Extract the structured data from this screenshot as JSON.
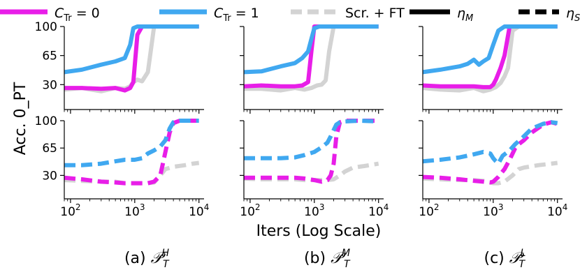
{
  "legend": {
    "placement": "top",
    "entries": [
      {
        "label": "C_Tr = 0",
        "color": "#e81ee8",
        "style": "solid"
      },
      {
        "label": "C_Tr = 1",
        "color": "#40a8f0",
        "style": "solid"
      },
      {
        "label": "Scr. + FT",
        "color": "#d3d3d3",
        "style": "dashed"
      },
      {
        "label": "η_M",
        "color": "#000000",
        "style": "solid"
      },
      {
        "label": "η_S",
        "color": "#000000",
        "style": "dashed"
      }
    ]
  },
  "ylabel": "Acc. 0_PT",
  "xlabel": "Iters (Log Scale)",
  "x_scale": "log",
  "xlim": [
    80,
    12000
  ],
  "ylim": [
    0,
    100
  ],
  "yticks": [
    30,
    65,
    100
  ],
  "xticks": [
    {
      "value": 100,
      "base": "10",
      "exp": "2"
    },
    {
      "value": 1000,
      "base": "10",
      "exp": "3"
    },
    {
      "value": 10000,
      "base": "10",
      "exp": "4"
    }
  ],
  "captions": [
    {
      "prefix": "(a)",
      "sup": "H",
      "sub": "T"
    },
    {
      "prefix": "(b)",
      "sup": "M",
      "sub": "T"
    },
    {
      "prefix": "(c)",
      "sup": "L",
      "sub": "T"
    }
  ],
  "colors": {
    "ctr0": "#e81ee8",
    "ctr1": "#40a8f0",
    "scr": "#d3d3d3"
  },
  "chart_data": [
    {
      "type": "line",
      "panel": "(a) top",
      "metric": "η_M",
      "x_scale": "log",
      "ylim": [
        0,
        100
      ],
      "series": [
        {
          "name": "C_Tr = 0",
          "x": [
            80,
            150,
            300,
            500,
            700,
            850,
            950,
            1100,
            1300,
            1600,
            2500,
            5000,
            10000
          ],
          "y": [
            26,
            26,
            25,
            26,
            23,
            26,
            33,
            90,
            100,
            100,
            100,
            100,
            100
          ]
        },
        {
          "name": "C_Tr = 1",
          "x": [
            80,
            150,
            300,
            500,
            700,
            850,
            950,
            1100,
            1300,
            1600,
            2500,
            5000,
            10000
          ],
          "y": [
            45,
            48,
            54,
            58,
            62,
            78,
            98,
            100,
            100,
            100,
            100,
            100,
            100
          ]
        },
        {
          "name": "Scr. + FT",
          "x": [
            80,
            150,
            300,
            500,
            700,
            850,
            950,
            1100,
            1300,
            1600,
            2000,
            2500,
            5000,
            10000
          ],
          "y": [
            24,
            26,
            22,
            26,
            25,
            28,
            33,
            36,
            34,
            45,
            100,
            100,
            100,
            100
          ]
        }
      ]
    },
    {
      "type": "line",
      "panel": "(b) top",
      "metric": "η_M",
      "x_scale": "log",
      "ylim": [
        0,
        100
      ],
      "series": [
        {
          "name": "C_Tr = 0",
          "x": [
            80,
            150,
            300,
            500,
            650,
            800,
            900,
            1000,
            1200,
            2000,
            5000,
            10000
          ],
          "y": [
            28,
            29,
            28,
            28,
            29,
            33,
            70,
            100,
            100,
            100,
            100,
            100
          ]
        },
        {
          "name": "C_Tr = 1",
          "x": [
            80,
            150,
            300,
            500,
            650,
            800,
            900,
            1000,
            1200,
            2000,
            5000,
            10000
          ],
          "y": [
            45,
            46,
            52,
            56,
            62,
            70,
            85,
            98,
            100,
            100,
            100,
            100
          ]
        },
        {
          "name": "Scr. + FT",
          "x": [
            80,
            150,
            300,
            500,
            700,
            900,
            1100,
            1300,
            1500,
            1700,
            2000,
            5000,
            10000
          ],
          "y": [
            25,
            25,
            23,
            26,
            24,
            26,
            29,
            30,
            35,
            70,
            100,
            100,
            100
          ]
        }
      ]
    },
    {
      "type": "line",
      "panel": "(c) top",
      "metric": "η_M",
      "x_scale": "log",
      "ylim": [
        0,
        100
      ],
      "series": [
        {
          "name": "C_Tr = 0",
          "x": [
            80,
            150,
            300,
            500,
            700,
            900,
            1000,
            1100,
            1300,
            1500,
            1800,
            2500,
            5000,
            10000
          ],
          "y": [
            29,
            28,
            28,
            28,
            27,
            27,
            30,
            36,
            50,
            65,
            100,
            100,
            100,
            100
          ]
        },
        {
          "name": "C_Tr = 1",
          "x": [
            80,
            150,
            300,
            400,
            500,
            600,
            700,
            850,
            1000,
            1200,
            1500,
            1800,
            2500,
            5000,
            10000
          ],
          "y": [
            45,
            48,
            52,
            55,
            60,
            54,
            58,
            62,
            78,
            95,
            100,
            100,
            100,
            100,
            100
          ]
        },
        {
          "name": "Scr. + FT",
          "x": [
            80,
            150,
            300,
            500,
            700,
            900,
            1100,
            1300,
            1500,
            1700,
            2000,
            2500,
            5000,
            10000
          ],
          "y": [
            26,
            24,
            23,
            26,
            22,
            24,
            27,
            32,
            40,
            50,
            95,
            100,
            100,
            100
          ]
        }
      ]
    },
    {
      "type": "line",
      "panel": "(a) bottom",
      "metric": "η_S",
      "x_scale": "log",
      "ylim": [
        0,
        100
      ],
      "series": [
        {
          "name": "C_Tr = 0",
          "x": [
            80,
            150,
            300,
            500,
            700,
            1000,
            1300,
            1600,
            2000,
            2500,
            3000,
            3500,
            4000,
            5000,
            10000
          ],
          "y": [
            27,
            25,
            22,
            21,
            20,
            20,
            20,
            20,
            22,
            30,
            60,
            85,
            97,
            100,
            100
          ]
        },
        {
          "name": "C_Tr = 1",
          "x": [
            80,
            150,
            300,
            500,
            700,
            1000,
            1300,
            1600,
            2000,
            2500,
            3000,
            3500,
            4000,
            5000,
            10000
          ],
          "y": [
            43,
            43,
            45,
            48,
            50,
            50,
            52,
            58,
            62,
            67,
            75,
            90,
            98,
            100,
            100
          ]
        },
        {
          "name": "Scr. + FT",
          "x": [
            80,
            150,
            300,
            500,
            700,
            1000,
            1300,
            1600,
            2000,
            2500,
            3000,
            4000,
            6000,
            8000,
            10000
          ],
          "y": [
            24,
            23,
            22,
            22,
            20,
            20,
            20,
            20,
            21,
            30,
            38,
            41,
            43,
            45,
            46
          ]
        }
      ]
    },
    {
      "type": "line",
      "panel": "(b) bottom",
      "metric": "η_S",
      "x_scale": "log",
      "ylim": [
        0,
        100
      ],
      "series": [
        {
          "name": "C_Tr = 0",
          "x": [
            80,
            150,
            300,
            500,
            700,
            1000,
            1300,
            1600,
            1800,
            2000,
            2200,
            2500,
            3000,
            5000,
            10000
          ],
          "y": [
            27,
            27,
            27,
            27,
            26,
            24,
            22,
            24,
            30,
            45,
            80,
            98,
            100,
            100,
            100
          ]
        },
        {
          "name": "C_Tr = 1",
          "x": [
            80,
            150,
            300,
            500,
            700,
            1000,
            1300,
            1600,
            1800,
            2000,
            2200,
            2500,
            3000,
            5000,
            10000
          ],
          "y": [
            52,
            52,
            52,
            53,
            56,
            60,
            66,
            72,
            80,
            88,
            95,
            98,
            99,
            100,
            99
          ]
        },
        {
          "name": "Scr. + FT",
          "x": [
            80,
            150,
            300,
            500,
            700,
            1000,
            1300,
            1600,
            2000,
            2500,
            3000,
            4000,
            6000,
            10000
          ],
          "y": [
            26,
            25,
            25,
            25,
            24,
            24,
            24,
            24,
            25,
            30,
            35,
            40,
            42,
            45
          ]
        }
      ]
    },
    {
      "type": "line",
      "panel": "(c) bottom",
      "metric": "η_S",
      "x_scale": "log",
      "ylim": [
        0,
        100
      ],
      "series": [
        {
          "name": "C_Tr = 0",
          "x": [
            80,
            150,
            300,
            500,
            700,
            900,
            1000,
            1200,
            1500,
            1800,
            2200,
            2500,
            3000,
            4000,
            6000,
            8000,
            10000
          ],
          "y": [
            28,
            27,
            25,
            23,
            22,
            21,
            22,
            28,
            38,
            50,
            65,
            70,
            75,
            85,
            95,
            98,
            96
          ]
        },
        {
          "name": "C_Tr = 1",
          "x": [
            80,
            150,
            300,
            500,
            700,
            900,
            1000,
            1100,
            1200,
            1400,
            1800,
            2200,
            2500,
            3000,
            4000,
            6000,
            8000,
            10000
          ],
          "y": [
            48,
            50,
            53,
            57,
            60,
            58,
            52,
            48,
            45,
            55,
            62,
            70,
            74,
            80,
            90,
            96,
            98,
            97
          ]
        },
        {
          "name": "Scr. + FT",
          "x": [
            80,
            150,
            300,
            500,
            700,
            900,
            1000,
            1200,
            1500,
            2000,
            2500,
            3000,
            5000,
            8000,
            10000
          ],
          "y": [
            26,
            25,
            24,
            24,
            23,
            21,
            20,
            20,
            22,
            30,
            38,
            40,
            43,
            45,
            46
          ]
        }
      ]
    }
  ]
}
